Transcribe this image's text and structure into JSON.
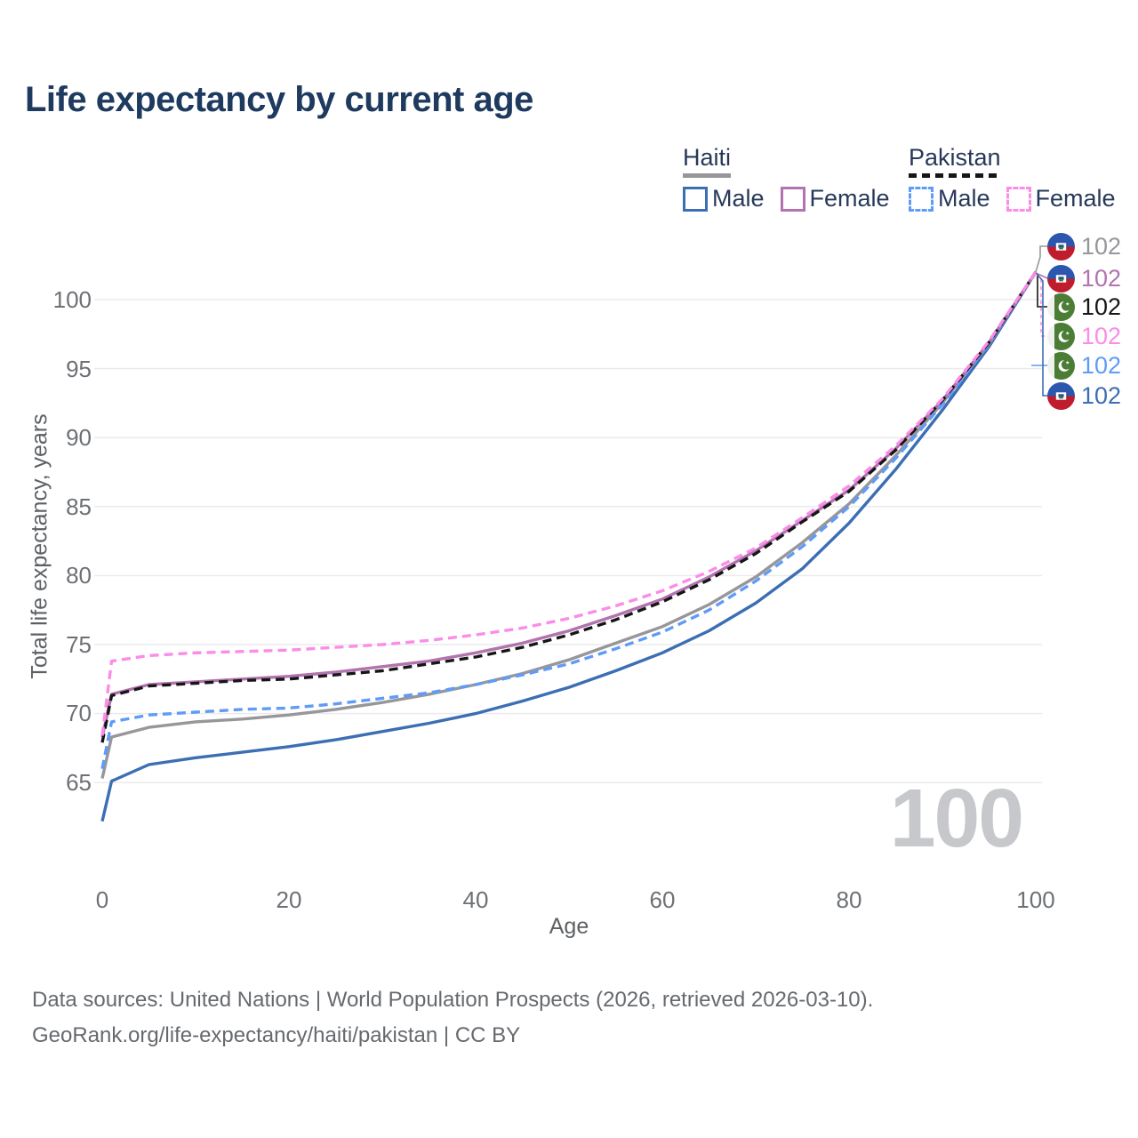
{
  "title": "Life expectancy by current age",
  "legend": {
    "groups": [
      {
        "country": "Haiti",
        "style": "solid",
        "items": [
          {
            "label": "Male"
          },
          {
            "label": "Female"
          }
        ]
      },
      {
        "country": "Pakistan",
        "style": "dashed",
        "items": [
          {
            "label": "Male"
          },
          {
            "label": "Female"
          }
        ]
      }
    ]
  },
  "watermark": "100",
  "footer": {
    "line1": "Data sources: United Nations | World Population Prospects (2026, retrieved 2026-03-10).",
    "line2": "GeoRank.org/life-expectancy/haiti/pakistan | CC BY"
  },
  "chart_data": {
    "type": "line",
    "title": "Life expectancy by current age",
    "xlabel": "Age",
    "ylabel": "Total life expectancy, years",
    "xlim": [
      0,
      100
    ],
    "ylim": [
      61,
      103
    ],
    "x_ticks": [
      0,
      20,
      40,
      60,
      80,
      100
    ],
    "y_ticks": [
      65,
      70,
      75,
      80,
      85,
      90,
      95,
      100
    ],
    "grid": "horizontal",
    "legend_position": "top-right",
    "x": [
      0,
      1,
      5,
      10,
      15,
      20,
      25,
      30,
      35,
      40,
      45,
      50,
      55,
      60,
      65,
      70,
      75,
      80,
      85,
      90,
      95,
      100
    ],
    "series": [
      {
        "id": "haiti_all",
        "name": "Haiti",
        "country": "Haiti",
        "sex": "All",
        "line_style": "solid",
        "color": "#97979b",
        "flag": "haiti",
        "end_label": "102",
        "values": [
          65.3,
          68.3,
          69.0,
          69.4,
          69.6,
          69.9,
          70.3,
          70.8,
          71.4,
          72.1,
          72.9,
          73.9,
          75.1,
          76.3,
          77.9,
          79.9,
          82.4,
          85.2,
          88.7,
          92.5,
          96.8,
          102
        ]
      },
      {
        "id": "haiti_female",
        "name": "Haiti Female",
        "country": "Haiti",
        "sex": "Female",
        "line_style": "solid",
        "color": "#b273af",
        "flag": "haiti",
        "end_label": "102",
        "values": [
          68.3,
          71.4,
          72.1,
          72.3,
          72.5,
          72.7,
          73.0,
          73.4,
          73.8,
          74.4,
          75.1,
          76.0,
          77.1,
          78.3,
          79.9,
          81.8,
          84.0,
          86.2,
          89.2,
          92.7,
          96.9,
          102
        ]
      },
      {
        "id": "pakistan_all",
        "name": "Pakistan",
        "country": "Pakistan",
        "sex": "All",
        "line_style": "dashed",
        "color": "#161616",
        "flag": "pakistan",
        "end_label": "102",
        "values": [
          67.9,
          71.3,
          72.0,
          72.2,
          72.4,
          72.5,
          72.8,
          73.1,
          73.6,
          74.1,
          74.8,
          75.7,
          76.8,
          78.1,
          79.7,
          81.6,
          83.9,
          86.1,
          89.1,
          92.7,
          96.9,
          102
        ]
      },
      {
        "id": "pakistan_female",
        "name": "Pakistan Female",
        "country": "Pakistan",
        "sex": "Female",
        "line_style": "dashed",
        "color": "#fb8ce8",
        "flag": "pakistan",
        "end_label": "102",
        "values": [
          68.4,
          73.8,
          74.2,
          74.4,
          74.5,
          74.6,
          74.8,
          75.0,
          75.3,
          75.7,
          76.2,
          76.9,
          77.8,
          78.9,
          80.3,
          82.0,
          84.2,
          86.5,
          89.4,
          92.8,
          97.0,
          102
        ]
      },
      {
        "id": "pakistan_male",
        "name": "Pakistan Male",
        "country": "Pakistan",
        "sex": "Male",
        "line_style": "dashed",
        "color": "#5f9bf7",
        "flag": "pakistan",
        "end_label": "102",
        "values": [
          66.0,
          69.4,
          69.9,
          70.1,
          70.3,
          70.4,
          70.7,
          71.1,
          71.5,
          72.1,
          72.8,
          73.6,
          74.7,
          75.9,
          77.5,
          79.6,
          82.1,
          85.0,
          88.5,
          92.4,
          96.8,
          102
        ]
      },
      {
        "id": "haiti_male",
        "name": "Haiti Male",
        "country": "Haiti",
        "sex": "Male",
        "line_style": "solid",
        "color": "#3c6eb4",
        "flag": "haiti",
        "end_label": "102",
        "values": [
          62.2,
          65.1,
          66.3,
          66.8,
          67.2,
          67.6,
          68.1,
          68.7,
          69.3,
          70.0,
          70.9,
          71.9,
          73.1,
          74.4,
          76.0,
          78.0,
          80.5,
          83.8,
          87.7,
          92.0,
          96.6,
          102
        ]
      }
    ]
  }
}
